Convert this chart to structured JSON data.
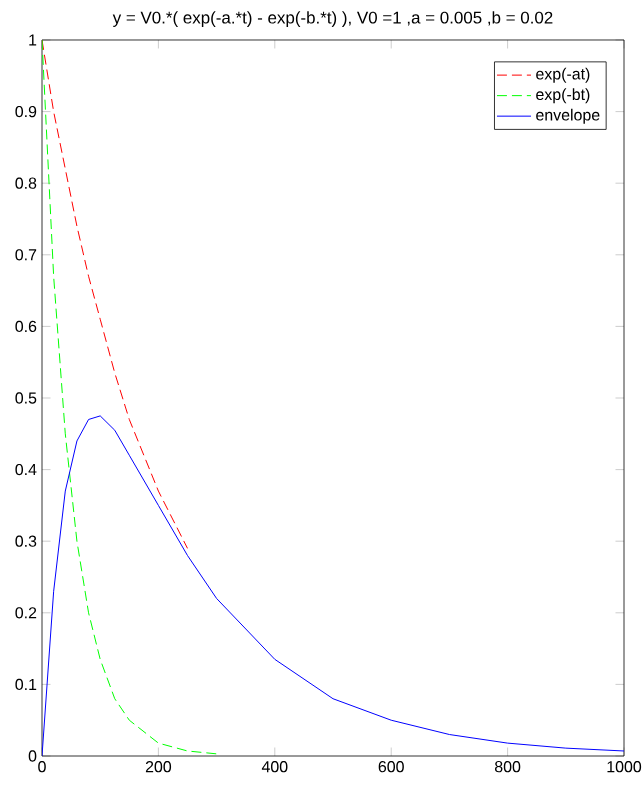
{
  "chart_data": {
    "type": "line",
    "title": "y = V0.*( exp(-a.*t) - exp(-b.*t) ), V0 =1 ,a =  0.005 ,b = 0.02",
    "xlim": [
      0,
      1000
    ],
    "ylim": [
      0,
      1
    ],
    "xticks": [
      0,
      200,
      400,
      600,
      800,
      1000
    ],
    "yticks": [
      0,
      0.1,
      0.2,
      0.3,
      0.4,
      0.5,
      0.6,
      0.7,
      0.8,
      0.9,
      1
    ],
    "legend": "top right",
    "grid": false,
    "series": [
      {
        "name": "exp(-at)",
        "color": "#ff0000",
        "line_style": "dashed",
        "x": [
          0,
          20,
          40,
          60,
          80,
          100,
          125,
          150,
          200,
          250
        ],
        "values": [
          1,
          0.9,
          0.82,
          0.74,
          0.67,
          0.61,
          0.535,
          0.47,
          0.37,
          0.29
        ]
      },
      {
        "name": "exp(-bt)",
        "color": "#00ff00",
        "line_style": "dashed",
        "x": [
          0,
          20,
          40,
          60,
          80,
          100,
          125,
          150,
          200,
          250,
          300
        ],
        "values": [
          1,
          0.67,
          0.45,
          0.3,
          0.2,
          0.135,
          0.08,
          0.05,
          0.018,
          0.007,
          0.003
        ]
      },
      {
        "name": "envelope",
        "color": "#0000ff",
        "line_style": "solid",
        "x": [
          0,
          20,
          40,
          60,
          80,
          100,
          125,
          150,
          200,
          250,
          300,
          400,
          500,
          600,
          700,
          800,
          900,
          1000
        ],
        "values": [
          0,
          0.23,
          0.37,
          0.44,
          0.47,
          0.475,
          0.455,
          0.42,
          0.35,
          0.28,
          0.22,
          0.135,
          0.08,
          0.05,
          0.03,
          0.018,
          0.011,
          0.007
        ]
      }
    ]
  }
}
